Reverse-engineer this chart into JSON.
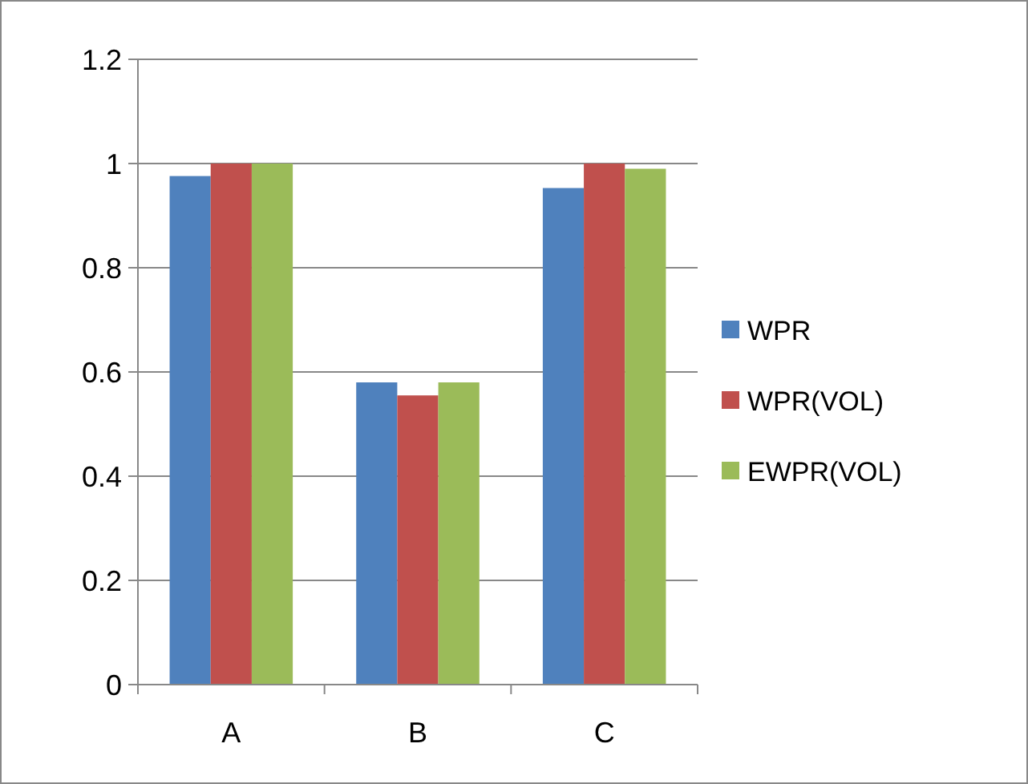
{
  "chart_data": {
    "type": "bar",
    "categories": [
      "A",
      "B",
      "C"
    ],
    "series": [
      {
        "name": "WPR",
        "color": "#4f81bd",
        "values": [
          0.976,
          0.58,
          0.953
        ]
      },
      {
        "name": "WPR(VOL)",
        "color": "#c0504d",
        "values": [
          1,
          0.555,
          1
        ]
      },
      {
        "name": "EWPR(VOL)",
        "color": "#9bbb59",
        "values": [
          1,
          0.58,
          0.99
        ]
      }
    ],
    "ylim": [
      0,
      1.2
    ],
    "yticks": [
      0,
      0.2,
      0.4,
      0.6,
      0.8,
      1,
      1.2
    ],
    "grid": "y",
    "legend": "right"
  }
}
